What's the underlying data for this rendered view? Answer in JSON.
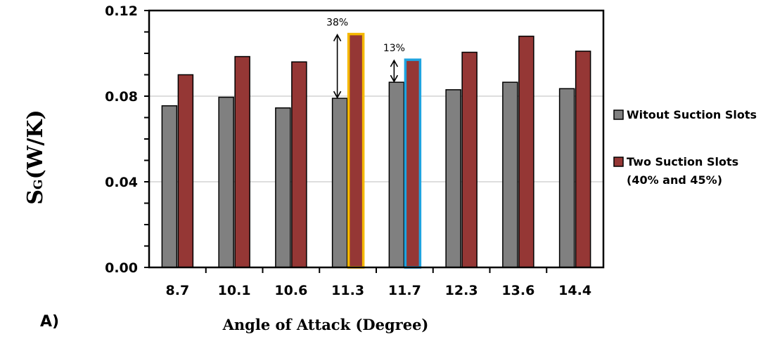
{
  "chart_data": {
    "type": "bar",
    "panel_label": "A)",
    "xlabel": "Angle of Attack (Degree)",
    "ylabel_main": "S",
    "ylabel_sub": "G",
    "ylabel_rest": "(W/K)",
    "categories": [
      "8.7",
      "10.1",
      "10.6",
      "11.3",
      "11.7",
      "12.3",
      "13.6",
      "14.4"
    ],
    "series": [
      {
        "name": "Witout Suction Slots",
        "color": "#808080",
        "values": [
          0.0755,
          0.0795,
          0.0745,
          0.079,
          0.0865,
          0.083,
          0.0865,
          0.0835
        ]
      },
      {
        "name": "Two Suction Slots",
        "name_line2": "(40% and 45%)",
        "color": "#953735",
        "values": [
          0.09,
          0.0985,
          0.096,
          0.109,
          0.097,
          0.1005,
          0.108,
          0.101
        ]
      }
    ],
    "ylim": [
      0,
      0.12
    ],
    "yticks": [
      "0.00",
      "0.04",
      "0.08",
      "0.12"
    ],
    "grid": true,
    "legend_position": "right",
    "highlights": [
      {
        "category_index": 3,
        "series_index": 1,
        "outline_color": "#F5B800",
        "label": "38%"
      },
      {
        "category_index": 4,
        "series_index": 1,
        "outline_color": "#1FA3DF",
        "label": "13%"
      }
    ]
  }
}
